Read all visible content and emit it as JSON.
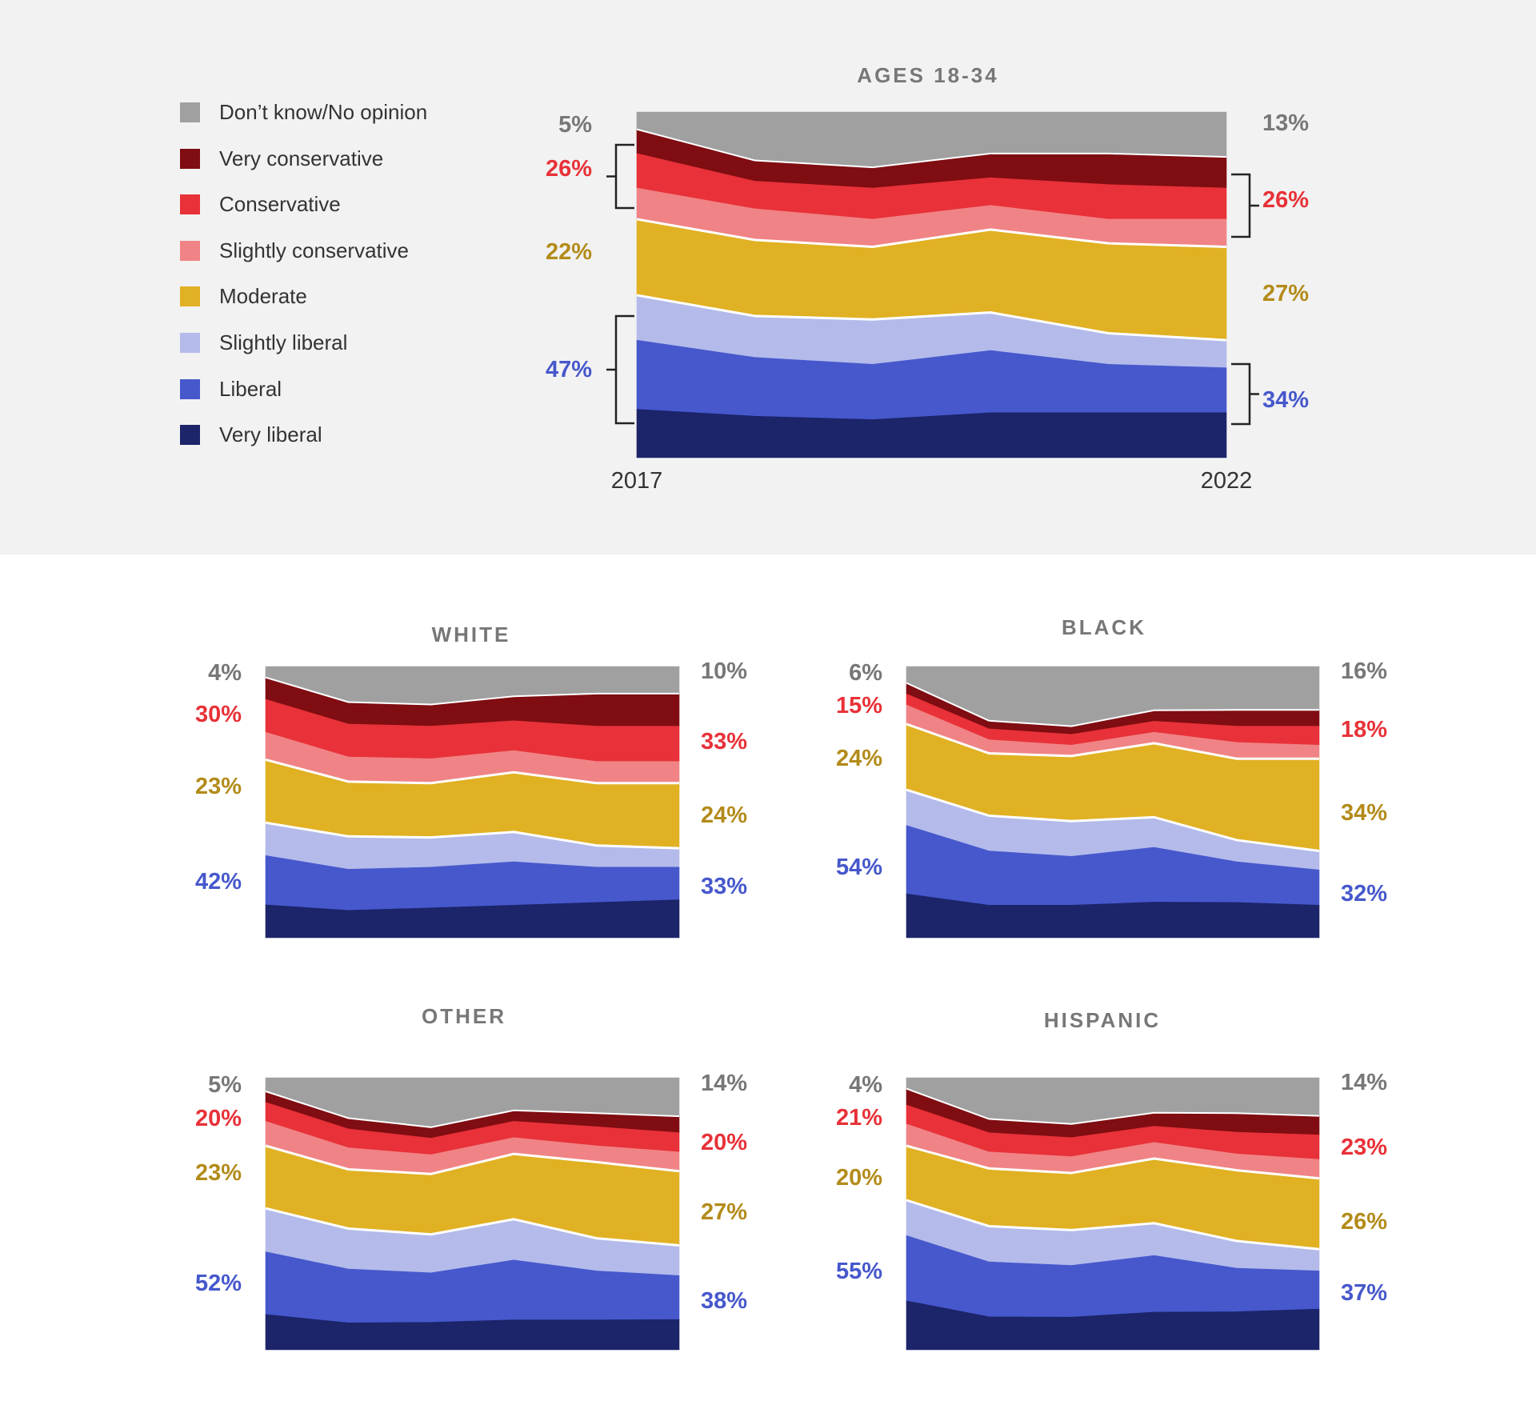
{
  "legend": [
    {
      "label": "Don’t know/No opinion",
      "color": "#a0a0a0"
    },
    {
      "label": "Very conservative",
      "color": "#7f0d12"
    },
    {
      "label": "Conservative",
      "color": "#e83138"
    },
    {
      "label": "Slightly conservative",
      "color": "#f08385"
    },
    {
      "label": "Moderate",
      "color": "#e1b124"
    },
    {
      "label": "Slightly liberal",
      "color": "#b4bbea"
    },
    {
      "label": "Liberal",
      "color": "#4658cc"
    },
    {
      "label": "Very liberal",
      "color": "#1c246a"
    }
  ],
  "label_colors": {
    "no_opinion": "#777777",
    "conservative": "#e83138",
    "moderate": "#b38b1a",
    "liberal": "#4658cc"
  },
  "chart_data": [
    {
      "type": "area",
      "stacked": true,
      "title": "AGES 18-34",
      "x": [
        2017,
        2018,
        2019,
        2020,
        2021,
        2022
      ],
      "x_tick_labels": [
        "2017",
        "2022"
      ],
      "ylim": [
        0,
        100
      ],
      "series": [
        {
          "name": "Don’t know/No opinion",
          "values": [
            5,
            14,
            16,
            12,
            12,
            13
          ]
        },
        {
          "name": "Very conservative",
          "values": [
            7,
            6,
            6,
            7,
            9,
            9
          ]
        },
        {
          "name": "Conservative",
          "values": [
            10,
            8,
            9,
            8,
            10,
            9
          ]
        },
        {
          "name": "Slightly conservative",
          "values": [
            9,
            9,
            8,
            7,
            7,
            8
          ]
        },
        {
          "name": "Moderate",
          "values": [
            22,
            22,
            21,
            24,
            26,
            27
          ]
        },
        {
          "name": "Slightly liberal",
          "values": [
            13,
            12,
            13,
            11,
            9,
            8
          ]
        },
        {
          "name": "Liberal",
          "values": [
            20,
            17,
            16,
            18,
            14,
            13
          ]
        },
        {
          "name": "Very liberal",
          "values": [
            14,
            12,
            11,
            13,
            13,
            13
          ]
        }
      ],
      "start_labels": {
        "no_opinion": "5%",
        "conservative": "26%",
        "moderate": "22%",
        "liberal": "47%"
      },
      "end_labels": {
        "no_opinion": "13%",
        "conservative": "26%",
        "moderate": "27%",
        "liberal": "34%"
      }
    },
    {
      "type": "area",
      "stacked": true,
      "title": "WHITE",
      "x": [
        2017,
        2018,
        2019,
        2020,
        2021,
        2022
      ],
      "ylim": [
        0,
        100
      ],
      "series": [
        {
          "name": "Don’t know/No opinion",
          "values": [
            4,
            13,
            14,
            11,
            10,
            10
          ]
        },
        {
          "name": "Very conservative",
          "values": [
            8,
            8,
            8,
            9,
            12,
            12
          ]
        },
        {
          "name": "Conservative",
          "values": [
            12,
            12,
            12,
            11,
            13,
            13
          ]
        },
        {
          "name": "Slightly conservative",
          "values": [
            10,
            9,
            9,
            8,
            8,
            8
          ]
        },
        {
          "name": "Moderate",
          "values": [
            23,
            20,
            20,
            22,
            23,
            24
          ]
        },
        {
          "name": "Slightly liberal",
          "values": [
            12,
            12,
            11,
            11,
            8,
            7
          ]
        },
        {
          "name": "Liberal",
          "values": [
            18,
            15,
            15,
            16,
            13,
            12
          ]
        },
        {
          "name": "Very liberal",
          "values": [
            12,
            10,
            11,
            12,
            13,
            14
          ]
        }
      ],
      "start_labels": {
        "no_opinion": "4%",
        "conservative": "30%",
        "moderate": "23%",
        "liberal": "42%"
      },
      "end_labels": {
        "no_opinion": "10%",
        "conservative": "33%",
        "moderate": "24%",
        "liberal": "33%"
      }
    },
    {
      "type": "area",
      "stacked": true,
      "title": "BLACK",
      "x": [
        2017,
        2018,
        2019,
        2020,
        2021,
        2022
      ],
      "ylim": [
        0,
        100
      ],
      "series": [
        {
          "name": "Don’t know/No opinion",
          "values": [
            6,
            20,
            22,
            16,
            16,
            16
          ]
        },
        {
          "name": "Very conservative",
          "values": [
            4,
            3,
            3,
            4,
            6,
            6
          ]
        },
        {
          "name": "Conservative",
          "values": [
            4,
            4,
            4,
            4,
            6,
            7
          ]
        },
        {
          "name": "Slightly conservative",
          "values": [
            7,
            5,
            4,
            4,
            6,
            5
          ]
        },
        {
          "name": "Moderate",
          "values": [
            24,
            23,
            24,
            27,
            30,
            34
          ]
        },
        {
          "name": "Slightly liberal",
          "values": [
            13,
            13,
            13,
            11,
            8,
            7
          ]
        },
        {
          "name": "Liberal",
          "values": [
            25,
            20,
            18,
            20,
            15,
            13
          ]
        },
        {
          "name": "Very liberal",
          "values": [
            16,
            12,
            12,
            13,
            13,
            12
          ]
        }
      ],
      "start_labels": {
        "no_opinion": "6%",
        "conservative": "15%",
        "moderate": "24%",
        "liberal": "54%"
      },
      "end_labels": {
        "no_opinion": "16%",
        "conservative": "18%",
        "moderate": "34%",
        "liberal": "32%"
      }
    },
    {
      "type": "area",
      "stacked": true,
      "title": "OTHER",
      "x": [
        2017,
        2018,
        2019,
        2020,
        2021,
        2022
      ],
      "ylim": [
        0,
        100
      ],
      "series": [
        {
          "name": "Don’t know/No opinion",
          "values": [
            5,
            15,
            18,
            12,
            13,
            14
          ]
        },
        {
          "name": "Very conservative",
          "values": [
            4,
            4,
            4,
            4,
            5,
            6
          ]
        },
        {
          "name": "Conservative",
          "values": [
            7,
            7,
            6,
            6,
            7,
            7
          ]
        },
        {
          "name": "Slightly conservative",
          "values": [
            9,
            8,
            7,
            6,
            6,
            7
          ]
        },
        {
          "name": "Moderate",
          "values": [
            23,
            22,
            22,
            24,
            28,
            27
          ]
        },
        {
          "name": "Slightly liberal",
          "values": [
            16,
            15,
            14,
            15,
            12,
            11
          ]
        },
        {
          "name": "Liberal",
          "values": [
            23,
            20,
            18,
            22,
            18,
            16
          ]
        },
        {
          "name": "Very liberal",
          "values": [
            13,
            10,
            10,
            11,
            11,
            11
          ]
        }
      ],
      "start_labels": {
        "no_opinion": "5%",
        "conservative": "20%",
        "moderate": "23%",
        "liberal": "52%"
      },
      "end_labels": {
        "no_opinion": "14%",
        "conservative": "20%",
        "moderate": "27%",
        "liberal": "38%"
      }
    },
    {
      "type": "area",
      "stacked": true,
      "title": "HISPANIC",
      "x": [
        2017,
        2018,
        2019,
        2020,
        2021,
        2022
      ],
      "ylim": [
        0,
        100
      ],
      "series": [
        {
          "name": "Don’t know/No opinion",
          "values": [
            4,
            15,
            17,
            13,
            13,
            14
          ]
        },
        {
          "name": "Very conservative",
          "values": [
            6,
            5,
            5,
            5,
            7,
            7
          ]
        },
        {
          "name": "Conservative",
          "values": [
            7,
            7,
            7,
            6,
            8,
            9
          ]
        },
        {
          "name": "Slightly conservative",
          "values": [
            8,
            6,
            6,
            6,
            6,
            7
          ]
        },
        {
          "name": "Moderate",
          "values": [
            20,
            21,
            21,
            24,
            26,
            26
          ]
        },
        {
          "name": "Slightly liberal",
          "values": [
            13,
            13,
            13,
            12,
            10,
            8
          ]
        },
        {
          "name": "Liberal",
          "values": [
            24,
            20,
            19,
            21,
            16,
            14
          ]
        },
        {
          "name": "Very liberal",
          "values": [
            18,
            12,
            12,
            14,
            14,
            15
          ]
        }
      ],
      "start_labels": {
        "no_opinion": "4%",
        "conservative": "21%",
        "moderate": "20%",
        "liberal": "55%"
      },
      "end_labels": {
        "no_opinion": "14%",
        "conservative": "23%",
        "moderate": "26%",
        "liberal": "37%"
      }
    }
  ]
}
